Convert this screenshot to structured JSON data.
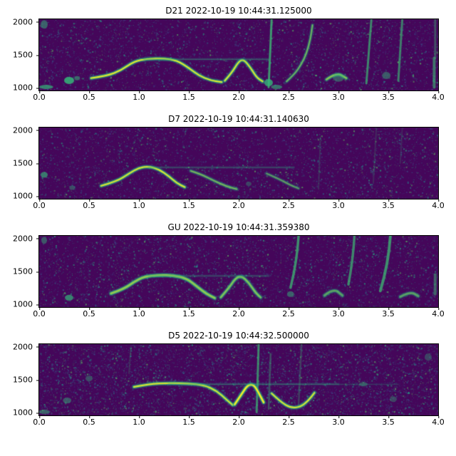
{
  "colors": {
    "figure_bg": "#ffffff",
    "axes_bg": "#45065a",
    "noise": [
      "#472d7b",
      "#472d7b",
      "#3b528b",
      "#3b528b",
      "#2c728e",
      "#2c728e",
      "#21918c",
      "#27ad81",
      "#27ad81",
      "#5ec962"
    ],
    "contour": "#35b779",
    "contour_glow": "#1f988b",
    "bright": "#fde725",
    "streak": "#3dbc74",
    "spine": "#000000",
    "text": "#000000"
  },
  "chart_data": {
    "type": "heatmap",
    "subtype": "spectrogram",
    "colormap": "viridis",
    "xlabel": "",
    "ylabel": "",
    "shared_axes": {
      "xlim": [
        0,
        4
      ],
      "ylim": [
        950,
        2050
      ],
      "xtick_labels": [
        "0.0",
        "0.5",
        "1.0",
        "1.5",
        "2.0",
        "2.5",
        "3.0",
        "3.5",
        "4.0"
      ],
      "xtick_values": [
        0,
        0.5,
        1,
        1.5,
        2,
        2.5,
        3,
        3.5,
        4
      ],
      "ytick_labels": [
        "2000",
        "1500",
        "1000"
      ],
      "ytick_values": [
        2000,
        1500,
        1000
      ],
      "grid": false
    },
    "panels": [
      {
        "title": "D21 2022-10-19 10:44:31.125000",
        "seed": 11,
        "noise_density": 0.09,
        "contours": [
          {
            "pts": [
              [
                0.52,
                1140
              ],
              [
                0.68,
                1175
              ],
              [
                0.82,
                1260
              ],
              [
                0.95,
                1400
              ],
              [
                1.08,
                1440
              ],
              [
                1.25,
                1445
              ],
              [
                1.38,
                1415
              ],
              [
                1.5,
                1300
              ],
              [
                1.6,
                1180
              ],
              [
                1.72,
                1105
              ],
              [
                1.83,
                1080
              ]
            ],
            "w": 4,
            "bright": 0.95,
            "a": 0.9
          },
          {
            "pts": [
              [
                1.86,
                1100
              ],
              [
                1.93,
                1220
              ],
              [
                2.0,
                1400
              ],
              [
                2.05,
                1430
              ],
              [
                2.12,
                1300
              ],
              [
                2.18,
                1150
              ],
              [
                2.24,
                1090
              ]
            ],
            "w": 4,
            "bright": 0.9,
            "a": 0.9
          },
          {
            "pts": [
              [
                2.48,
                1090
              ],
              [
                2.56,
                1200
              ],
              [
                2.63,
                1360
              ],
              [
                2.68,
                1520
              ],
              [
                2.72,
                1750
              ],
              [
                2.74,
                1960
              ]
            ],
            "w": 3,
            "bright": 0.4,
            "a": 0.75
          },
          {
            "pts": [
              [
                2.88,
                1120
              ],
              [
                2.98,
                1230
              ],
              [
                3.08,
                1140
              ]
            ],
            "w": 4,
            "bright": 0.5,
            "a": 0.8
          },
          {
            "pts": [
              [
                1.05,
                1432
              ],
              [
                2.3,
                1432
              ]
            ],
            "w": 1.5,
            "bright": 0,
            "a": 0.4
          }
        ],
        "streaks": [
          {
            "t": 2.3,
            "f0": 1000,
            "f1": 2040,
            "slant": 0.03,
            "a": 0.8,
            "w": 3
          },
          {
            "t": 3.28,
            "f0": 1060,
            "f1": 2040,
            "slant": 0.05,
            "a": 0.7,
            "w": 3
          },
          {
            "t": 3.6,
            "f0": 1100,
            "f1": 2040,
            "slant": 0.04,
            "a": 0.65,
            "w": 3
          },
          {
            "t": 3.96,
            "f0": 1000,
            "f1": 1450,
            "slant": 0,
            "a": 0.6,
            "w": 4
          },
          {
            "t": 3.97,
            "f0": 1450,
            "f1": 2040,
            "slant": 0,
            "a": 0.4,
            "w": 3
          }
        ],
        "blobs": [
          {
            "t": 0.3,
            "f": 1105,
            "rw": 7,
            "rh": 5,
            "a": 0.85
          },
          {
            "t": 0.38,
            "f": 1140,
            "rw": 4,
            "rh": 3,
            "a": 0.55
          },
          {
            "t": 0.05,
            "f": 1970,
            "rw": 5,
            "rh": 6,
            "a": 0.5
          },
          {
            "t": 2.3,
            "f": 1070,
            "rw": 6,
            "rh": 5,
            "a": 0.8
          },
          {
            "t": 3.0,
            "f": 1150,
            "rw": 8,
            "rh": 6,
            "a": 0.45
          },
          {
            "t": 3.48,
            "f": 1180,
            "rw": 6,
            "rh": 5,
            "a": 0.45
          },
          {
            "t": 0.07,
            "f": 1005,
            "rw": 10,
            "rh": 3,
            "a": 0.7
          },
          {
            "t": 2.38,
            "f": 1005,
            "rw": 8,
            "rh": 3,
            "a": 0.6
          }
        ]
      },
      {
        "title": "D7 2022-10-19 10:44:31.140630",
        "seed": 22,
        "noise_density": 0.09,
        "contours": [
          {
            "pts": [
              [
                0.62,
                1150
              ],
              [
                0.78,
                1220
              ],
              [
                0.9,
                1340
              ],
              [
                1.0,
                1430
              ],
              [
                1.1,
                1450
              ],
              [
                1.2,
                1405
              ],
              [
                1.3,
                1300
              ],
              [
                1.38,
                1190
              ],
              [
                1.46,
                1130
              ]
            ],
            "w": 4,
            "bright": 0.9,
            "a": 0.9
          },
          {
            "pts": [
              [
                1.52,
                1380
              ],
              [
                1.62,
                1330
              ],
              [
                1.75,
                1230
              ],
              [
                1.88,
                1140
              ],
              [
                1.98,
                1100
              ]
            ],
            "w": 3.5,
            "bright": 0.45,
            "a": 0.7
          },
          {
            "pts": [
              [
                2.28,
                1340
              ],
              [
                2.4,
                1260
              ],
              [
                2.52,
                1160
              ],
              [
                2.6,
                1110
              ]
            ],
            "w": 3,
            "bright": 0.3,
            "a": 0.6
          },
          {
            "pts": [
              [
                1.1,
                1435
              ],
              [
                2.55,
                1435
              ]
            ],
            "w": 1.5,
            "bright": 0,
            "a": 0.35
          }
        ],
        "streaks": [
          {
            "t": 2.8,
            "f0": 1100,
            "f1": 1900,
            "slant": 0.02,
            "a": 0.2,
            "w": 2
          },
          {
            "t": 3.35,
            "f0": 1200,
            "f1": 2040,
            "slant": 0.03,
            "a": 0.2,
            "w": 2
          },
          {
            "t": 3.62,
            "f0": 1500,
            "f1": 2040,
            "slant": 0.02,
            "a": 0.18,
            "w": 2
          }
        ],
        "blobs": [
          {
            "t": 0.05,
            "f": 1320,
            "rw": 5,
            "rh": 4,
            "a": 0.65
          },
          {
            "t": 0.33,
            "f": 1120,
            "rw": 4,
            "rh": 3,
            "a": 0.4
          },
          {
            "t": 2.1,
            "f": 1180,
            "rw": 4,
            "rh": 3,
            "a": 0.35
          }
        ]
      },
      {
        "title": "GU 2022-10-19 10:44:31.359380",
        "seed": 33,
        "noise_density": 0.1,
        "contours": [
          {
            "pts": [
              [
                0.72,
                1160
              ],
              [
                0.85,
                1230
              ],
              [
                0.95,
                1340
              ],
              [
                1.05,
                1420
              ],
              [
                1.2,
                1445
              ],
              [
                1.35,
                1440
              ],
              [
                1.48,
                1390
              ],
              [
                1.58,
                1270
              ],
              [
                1.68,
                1150
              ],
              [
                1.76,
                1090
              ]
            ],
            "w": 4.5,
            "bright": 0.5,
            "a": 0.9
          },
          {
            "pts": [
              [
                1.82,
                1100
              ],
              [
                1.9,
                1240
              ],
              [
                1.97,
                1400
              ],
              [
                2.03,
                1430
              ],
              [
                2.1,
                1330
              ],
              [
                2.17,
                1170
              ],
              [
                2.22,
                1100
              ]
            ],
            "w": 4,
            "bright": 0.45,
            "a": 0.85
          },
          {
            "pts": [
              [
                1.1,
                1432
              ],
              [
                2.3,
                1432
              ]
            ],
            "w": 1.5,
            "bright": 0,
            "a": 0.35
          },
          {
            "pts": [
              [
                2.86,
                1130
              ],
              [
                2.95,
                1240
              ],
              [
                3.04,
                1130
              ]
            ],
            "w": 4,
            "bright": 0.25,
            "a": 0.7
          },
          {
            "pts": [
              [
                3.62,
                1110
              ],
              [
                3.72,
                1190
              ],
              [
                3.8,
                1120
              ]
            ],
            "w": 4,
            "bright": 0.25,
            "a": 0.7
          }
        ],
        "streaks": [
          {
            "t": 2.52,
            "f0": 1250,
            "f1": 2040,
            "slant": 0.08,
            "a": 0.75,
            "w": 3.5,
            "bow": 0.6
          },
          {
            "t": 3.1,
            "f0": 1300,
            "f1": 2040,
            "slant": 0.06,
            "a": 0.7,
            "w": 3.5,
            "bow": 0.4
          },
          {
            "t": 3.42,
            "f0": 1200,
            "f1": 2040,
            "slant": 0.1,
            "a": 0.75,
            "w": 4,
            "bow": 0.8
          },
          {
            "t": 3.97,
            "f0": 1150,
            "f1": 1450,
            "slant": 0,
            "a": 0.5,
            "w": 4
          }
        ],
        "blobs": [
          {
            "t": 0.3,
            "f": 1095,
            "rw": 6,
            "rh": 4,
            "a": 0.7
          },
          {
            "t": 0.05,
            "f": 1980,
            "rw": 4,
            "rh": 5,
            "a": 0.45
          },
          {
            "t": 2.52,
            "f": 1150,
            "rw": 5,
            "rh": 4,
            "a": 0.5
          }
        ]
      },
      {
        "title": "D5 2022-10-19 10:44:32.500000",
        "seed": 44,
        "noise_density": 0.135,
        "contours": [
          {
            "pts": [
              [
                0.95,
                1390
              ],
              [
                1.1,
                1435
              ],
              [
                1.3,
                1450
              ],
              [
                1.5,
                1440
              ],
              [
                1.65,
                1420
              ],
              [
                1.78,
                1330
              ],
              [
                1.88,
                1190
              ],
              [
                1.94,
                1110
              ]
            ],
            "w": 4,
            "bright": 0.85,
            "a": 0.9
          },
          {
            "pts": [
              [
                1.96,
                1120
              ],
              [
                2.03,
                1280
              ],
              [
                2.09,
                1420
              ],
              [
                2.15,
                1430
              ],
              [
                2.2,
                1300
              ],
              [
                2.25,
                1150
              ]
            ],
            "w": 4.5,
            "bright": 1,
            "a": 0.95
          },
          {
            "pts": [
              [
                2.33,
                1290
              ],
              [
                2.42,
                1160
              ],
              [
                2.52,
                1065
              ],
              [
                2.62,
                1080
              ],
              [
                2.7,
                1180
              ],
              [
                2.76,
                1300
              ]
            ],
            "w": 4,
            "bright": 0.9,
            "a": 0.9
          },
          {
            "pts": [
              [
                1.3,
                1430
              ],
              [
                3.0,
                1430
              ]
            ],
            "w": 1.5,
            "bright": 0,
            "a": 0.45
          },
          {
            "pts": [
              [
                3.0,
                1430
              ],
              [
                3.6,
                1430
              ]
            ],
            "w": 1,
            "bright": 0,
            "a": 0.25
          }
        ],
        "streaks": [
          {
            "t": 2.18,
            "f0": 1000,
            "f1": 2040,
            "slant": 0.02,
            "a": 0.7,
            "w": 3
          },
          {
            "t": 2.3,
            "f0": 1050,
            "f1": 1900,
            "slant": 0.02,
            "a": 0.4,
            "w": 2.5
          },
          {
            "t": 2.6,
            "f0": 1100,
            "f1": 2040,
            "slant": 0.03,
            "a": 0.3,
            "w": 2.5
          },
          {
            "t": 0.9,
            "f0": 1600,
            "f1": 2000,
            "slant": 0.02,
            "a": 0.22,
            "w": 2
          }
        ],
        "blobs": [
          {
            "t": 0.28,
            "f": 1180,
            "rw": 6,
            "rh": 4,
            "a": 0.45
          },
          {
            "t": 0.5,
            "f": 1520,
            "rw": 5,
            "rh": 4,
            "a": 0.4
          },
          {
            "t": 3.25,
            "f": 1430,
            "rw": 6,
            "rh": 3,
            "a": 0.4
          },
          {
            "t": 3.9,
            "f": 1850,
            "rw": 5,
            "rh": 5,
            "a": 0.35
          },
          {
            "t": 3.55,
            "f": 1200,
            "rw": 5,
            "rh": 4,
            "a": 0.35
          },
          {
            "t": 0.05,
            "f": 1005,
            "rw": 8,
            "rh": 3,
            "a": 0.5
          }
        ]
      }
    ]
  }
}
